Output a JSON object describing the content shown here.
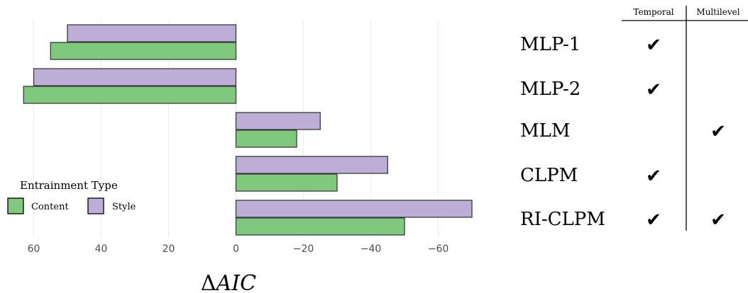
{
  "chart_data": {
    "type": "bar",
    "orientation": "horizontal",
    "xlabel": "ΔAIC",
    "x_reversed": true,
    "xlim": [
      64.5,
      -73
    ],
    "xticks": [
      60,
      40,
      20,
      0,
      -20,
      -40,
      -60
    ],
    "xtick_labels": [
      "60",
      "40",
      "20",
      "0",
      "−20",
      "−40",
      "−60"
    ],
    "categories": [
      "MLP-1",
      "MLP-2",
      "MLM",
      "CLPM",
      "RI-CLPM"
    ],
    "series": [
      {
        "name": "Style",
        "color": "#bcaed6",
        "values": [
          50,
          60,
          -25,
          -45,
          -70
        ]
      },
      {
        "name": "Content",
        "color": "#7fc97f",
        "values": [
          55,
          63,
          -18,
          -30,
          -50
        ]
      }
    ],
    "legend": {
      "title": "Entrainment Type",
      "position": "bottom-left",
      "entries": [
        {
          "label": "Content",
          "color": "#7fc97f"
        },
        {
          "label": "Style",
          "color": "#bcaed6"
        }
      ]
    },
    "grid": true
  },
  "model_table": {
    "columns": [
      "Temporal",
      "Multilevel"
    ],
    "check_mark": "✔",
    "rows": [
      {
        "label": "MLP-1",
        "temporal": true,
        "multilevel": false
      },
      {
        "label": "MLP-2",
        "temporal": true,
        "multilevel": false
      },
      {
        "label": "MLM",
        "temporal": false,
        "multilevel": true
      },
      {
        "label": "CLPM",
        "temporal": true,
        "multilevel": false
      },
      {
        "label": "RI-CLPM",
        "temporal": true,
        "multilevel": true
      }
    ]
  }
}
